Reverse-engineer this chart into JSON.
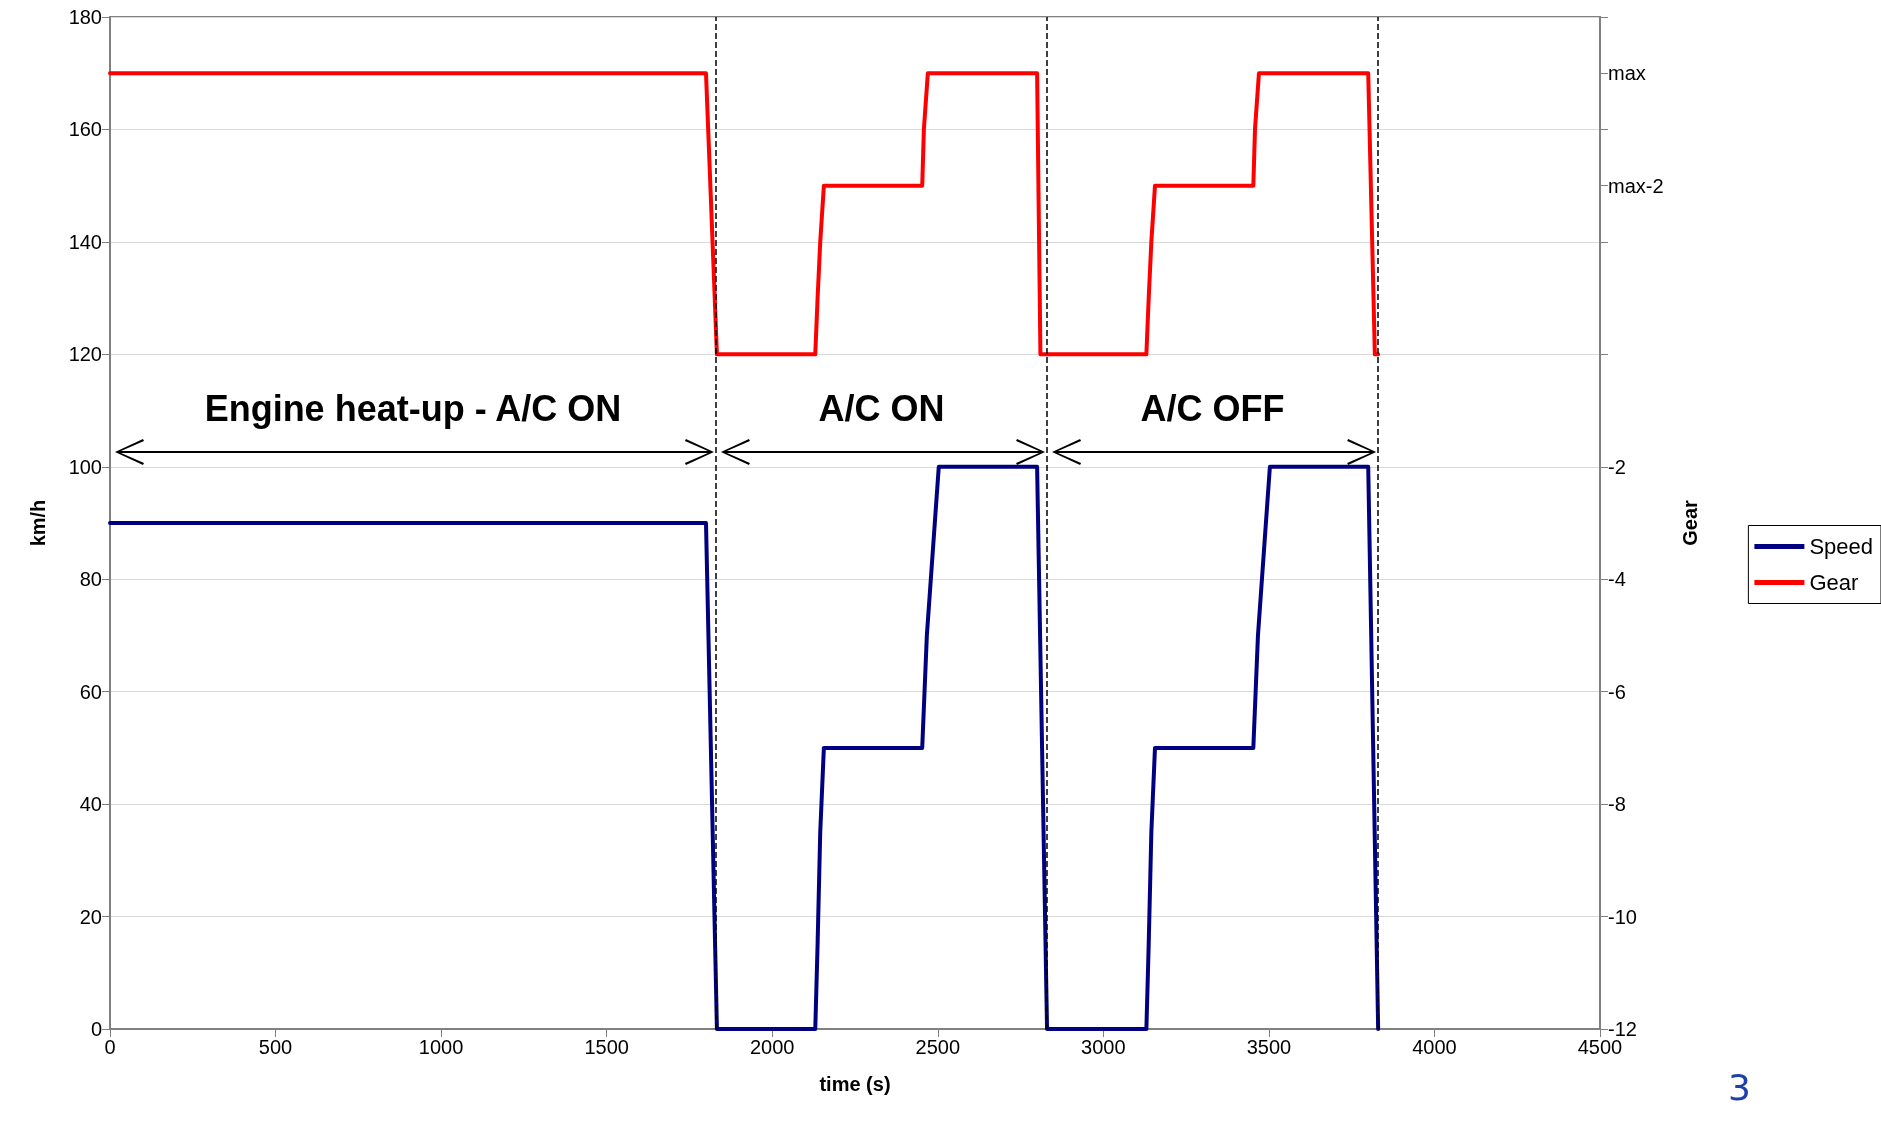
{
  "chart_data": {
    "type": "line",
    "xlabel": "time (s)",
    "ylabel": "km/h",
    "y2label": "Gear",
    "xlim": [
      0,
      4500
    ],
    "xticks": [
      0,
      500,
      1000,
      1500,
      2000,
      2500,
      3000,
      3500,
      4000,
      4500
    ],
    "ylim": [
      0,
      180
    ],
    "yticks": [
      0,
      20,
      40,
      60,
      80,
      100,
      120,
      140,
      160,
      180
    ],
    "y2lim": [
      -12,
      6
    ],
    "y2ticks": [
      -12,
      -10,
      -8,
      -6,
      -4,
      -2,
      {
        "value": 0,
        "label": null
      },
      {
        "value": 2,
        "label": null
      },
      {
        "value": 3,
        "label": "max-2"
      },
      {
        "value": 4,
        "label": null
      },
      {
        "value": 5,
        "label": "max"
      },
      {
        "value": 6,
        "label": null
      }
    ],
    "grid": "y",
    "legend": "right",
    "marker": "none",
    "line_style": "solid",
    "series": [
      {
        "name": "Speed",
        "color": "#000080",
        "x": [
          0,
          1800,
          1833,
          2130,
          2137,
          2145,
          2156,
          2453,
          2467,
          2503,
          2800,
          2830,
          3130,
          3137,
          3145,
          3156,
          3453,
          3467,
          3503,
          3800,
          3830
        ],
        "values": [
          90,
          90,
          0,
          0,
          15,
          35,
          50,
          50,
          70,
          100,
          100,
          0,
          0,
          15,
          35,
          50,
          50,
          70,
          100,
          100,
          0
        ]
      },
      {
        "name": "Gear",
        "color": "#ff0000",
        "axis": "y2",
        "x": [
          0,
          1800,
          1833,
          2130,
          2137,
          2145,
          2156,
          2453,
          2458,
          2470,
          2800,
          2810,
          3130,
          3137,
          3145,
          3156,
          3453,
          3458,
          3470,
          3800,
          3820,
          3830
        ],
        "values": [
          5,
          5,
          0,
          0,
          1,
          2,
          3,
          3,
          4,
          5,
          5,
          0,
          0,
          1,
          2,
          3,
          3,
          4,
          5,
          5,
          0,
          0
        ]
      }
    ],
    "ref_lines": [
      {
        "axis": "x",
        "value": 1830,
        "line_style": "dashed",
        "color": "#000000"
      },
      {
        "axis": "x",
        "value": 2830,
        "line_style": "dashed",
        "color": "#000000"
      },
      {
        "axis": "x",
        "value": 3830,
        "line_style": "dashed",
        "color": "#000000"
      }
    ],
    "annotations": [
      "Engine heat-up - A/C ON",
      "A/C ON",
      "A/C OFF",
      "3"
    ]
  }
}
